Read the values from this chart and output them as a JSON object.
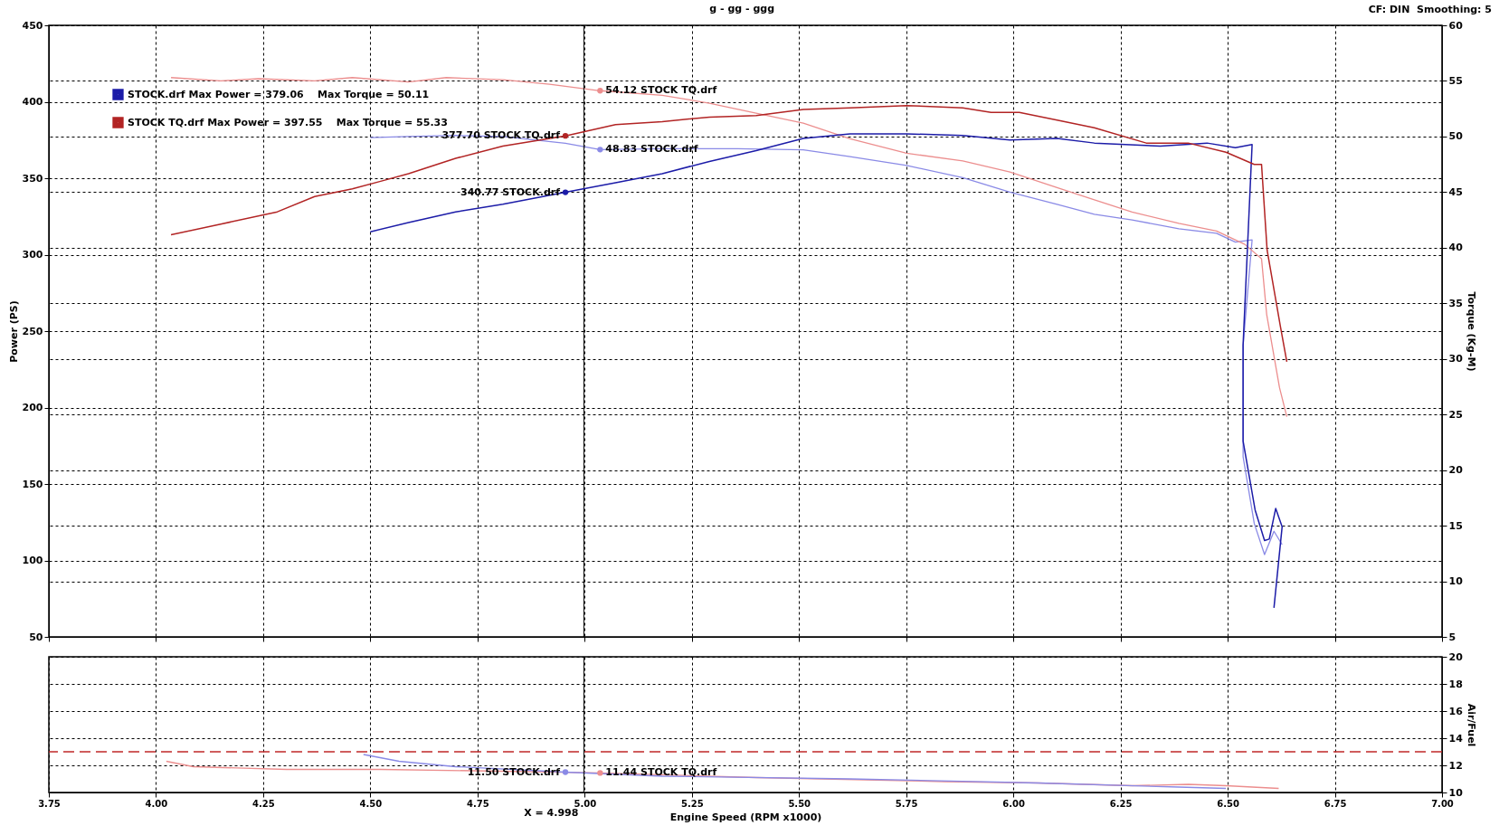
{
  "chart_data": [
    {
      "type": "line",
      "subtitle": "g - gg - ggg",
      "ylabel": "Power (PS)",
      "y2label": "Torque (Kg-M)",
      "annotations": [
        "CF: DIN  Smoothing: 5"
      ],
      "xlim": [
        3.75,
        7
      ],
      "xticks": [
        {
          "value": 3.75,
          "label": null
        },
        {
          "value": 4,
          "label": null
        },
        {
          "value": 4.25,
          "label": null
        },
        {
          "value": 4.5,
          "label": null
        },
        {
          "value": 4.75,
          "label": null
        },
        {
          "value": 5,
          "label": null
        },
        {
          "value": 5.25,
          "label": null
        },
        {
          "value": 5.5,
          "label": null
        },
        {
          "value": 5.75,
          "label": null
        },
        {
          "value": 6,
          "label": null
        },
        {
          "value": 6.25,
          "label": null
        },
        {
          "value": 6.5,
          "label": null
        },
        {
          "value": 6.75,
          "label": null
        },
        {
          "value": 7,
          "label": null
        }
      ],
      "ylim": [
        50,
        450
      ],
      "yticks": [
        50,
        100,
        150,
        200,
        250,
        300,
        350,
        400,
        450
      ],
      "y2lim": [
        5,
        60
      ],
      "y2ticks": [
        5,
        10,
        15,
        20,
        25,
        30,
        35,
        40,
        45,
        50,
        55,
        60
      ],
      "tick_labels": "y",
      "grid": true,
      "legend": "top left",
      "ref_lines": [
        {
          "axis": "x",
          "value": 4.998,
          "color": "#000000"
        }
      ],
      "series": [
        {
          "name": "STOCK.drf Max Power = 379.06    Max Torque = 50.11",
          "color": "#1c1ca8",
          "x": [
            4.5,
            4.589,
            4.699,
            4.809,
            4.955,
            5.072,
            5.181,
            5.291,
            5.4,
            5.51,
            5.619,
            5.751,
            5.882,
            5.992,
            6.102,
            6.189,
            6.343,
            6.452,
            6.518,
            6.557,
            6.536,
            6.536,
            6.564,
            6.586,
            6.597,
            6.612,
            6.627,
            6.608
          ],
          "values": [
            315,
            321,
            328,
            333,
            340.77,
            347,
            353,
            361,
            368,
            376,
            379,
            379,
            378,
            375,
            376,
            373,
            371,
            373,
            370,
            372,
            241,
            178,
            133,
            113,
            114,
            134,
            122,
            69
          ],
          "value_labels": [
            null,
            null,
            null,
            null,
            "340.77 STOCK.drf",
            null,
            null,
            null,
            null,
            null,
            null,
            null,
            null,
            null,
            null,
            null,
            null,
            null,
            null,
            null,
            null,
            null,
            null,
            null,
            null,
            null,
            null,
            null
          ]
        },
        {
          "name": "STOCK TQ.drf Max Power = 397.55    Max Torque = 55.33",
          "color": "#b22424",
          "x": [
            4.035,
            4.151,
            4.283,
            4.37,
            4.458,
            4.524,
            4.589,
            4.699,
            4.809,
            4.955,
            5.072,
            5.181,
            5.291,
            5.4,
            5.51,
            5.619,
            5.751,
            5.882,
            5.948,
            6.014,
            6.102,
            6.189,
            6.31,
            6.408,
            6.496,
            6.562,
            6.579,
            6.592,
            6.623,
            6.638
          ],
          "values": [
            313,
            320,
            328,
            338,
            343,
            348,
            353,
            363,
            371,
            377.7,
            385,
            387,
            390,
            391,
            395,
            396,
            397.5,
            396,
            393,
            393,
            388,
            383,
            373,
            373,
            367,
            359,
            359,
            303,
            253,
            230
          ],
          "value_labels": [
            null,
            null,
            null,
            null,
            null,
            null,
            null,
            null,
            null,
            "377.70 STOCK TQ.drf",
            null,
            null,
            null,
            null,
            null,
            null,
            null,
            null,
            null,
            null,
            null,
            null,
            null,
            null,
            null,
            null,
            null,
            null,
            null,
            null
          ]
        },
        {
          "color": "#8a8ae6",
          "axis": "y2",
          "x": [
            4.5,
            4.589,
            4.699,
            4.809,
            4.955,
            5.036,
            5.181,
            5.356,
            5.51,
            5.619,
            5.751,
            5.882,
            5.992,
            6.102,
            6.189,
            6.277,
            6.386,
            6.474,
            6.518,
            6.557,
            6.536,
            6.536,
            6.562,
            6.586,
            6.608,
            6.627
          ],
          "values": [
            49.9,
            50,
            50.1,
            50,
            49.4,
            48.83,
            48.9,
            48.9,
            48.8,
            48.2,
            47.4,
            46.3,
            45,
            43.9,
            43,
            42.5,
            41.7,
            41.3,
            40.5,
            40.7,
            31.2,
            21.2,
            15.2,
            12.4,
            14.5,
            13.3
          ],
          "value_labels": [
            null,
            null,
            null,
            null,
            null,
            "48.83 STOCK.drf",
            null,
            null,
            null,
            null,
            null,
            null,
            null,
            null,
            null,
            null,
            null,
            null,
            null,
            null,
            null,
            null,
            null,
            null,
            null,
            null
          ]
        },
        {
          "color": "#ec8e8e",
          "axis": "y2",
          "x": [
            4.035,
            4.151,
            4.239,
            4.37,
            4.458,
            4.589,
            4.677,
            4.809,
            4.918,
            5.036,
            5.181,
            5.291,
            5.4,
            5.51,
            5.619,
            5.751,
            5.882,
            5.992,
            6.102,
            6.189,
            6.277,
            6.386,
            6.474,
            6.54,
            6.579,
            6.591,
            6.621,
            6.638
          ],
          "values": [
            55.3,
            55,
            55.2,
            55,
            55.3,
            54.9,
            55.3,
            55.1,
            54.7,
            54.12,
            53.7,
            53,
            52.1,
            51.2,
            49.8,
            48.5,
            47.8,
            46.8,
            45.4,
            44.3,
            43.2,
            42.2,
            41.5,
            40.3,
            39,
            34,
            27.4,
            24.8
          ],
          "value_labels": [
            null,
            null,
            null,
            null,
            null,
            null,
            null,
            null,
            null,
            "54.12 STOCK TQ.drf",
            null,
            null,
            null,
            null,
            null,
            null,
            null,
            null,
            null,
            null,
            null,
            null,
            null,
            null,
            null,
            null,
            null,
            null
          ]
        }
      ]
    },
    {
      "type": "line",
      "xlabel": "Engine Speed (RPM x1000)",
      "y2label": "Air/Fuel",
      "xlim": [
        3.75,
        7
      ],
      "xticks": [
        {
          "value": 3.75,
          "label": "3.75"
        },
        {
          "value": 4,
          "label": "4.00"
        },
        {
          "value": 4.25,
          "label": "4.25"
        },
        {
          "value": 4.5,
          "label": "4.50"
        },
        {
          "value": 4.75,
          "label": "4.75"
        },
        {
          "value": 5,
          "label": "5.00"
        },
        {
          "value": 5.25,
          "label": "5.25"
        },
        {
          "value": 5.5,
          "label": "5.50"
        },
        {
          "value": 5.75,
          "label": "5.75"
        },
        {
          "value": 6,
          "label": "6.00"
        },
        {
          "value": 6.25,
          "label": "6.25"
        },
        {
          "value": 6.5,
          "label": "6.50"
        },
        {
          "value": 6.75,
          "label": "6.75"
        },
        {
          "value": 7,
          "label": "7.00"
        }
      ],
      "y2lim": [
        10,
        20
      ],
      "y2ticks": [
        10,
        12,
        14,
        16,
        18,
        20
      ],
      "grid": true,
      "ref_lines": [
        {
          "axis": "x",
          "value": 4.998,
          "label": "X = 4.998",
          "color": "#000000"
        },
        {
          "axis": "y2",
          "value": 13,
          "color": "#c02828",
          "line_style": "dashed"
        }
      ],
      "series": [
        {
          "color": "#ec8e8e",
          "axis": "y2",
          "x": [
            4.024,
            4.087,
            4.304,
            4.524,
            4.743,
            5.036,
            5.4,
            5.839,
            6.058,
            6.277,
            6.408,
            6.496,
            6.619
          ],
          "values": [
            12.3,
            11.9,
            11.7,
            11.7,
            11.6,
            11.44,
            11.1,
            10.8,
            10.7,
            10.5,
            10.6,
            10.5,
            10.3
          ],
          "value_labels": [
            null,
            null,
            null,
            null,
            null,
            "11.44 STOCK TQ.drf",
            null,
            null,
            null,
            null,
            null,
            null,
            null
          ]
        },
        {
          "color": "#8a8ae6",
          "axis": "y2",
          "x": [
            4.484,
            4.567,
            4.699,
            4.955,
            5.181,
            5.619,
            6.058,
            6.386,
            6.496
          ],
          "values": [
            12.8,
            12.3,
            11.9,
            11.5,
            11.2,
            11,
            10.7,
            10.4,
            10.3
          ],
          "value_labels": [
            null,
            null,
            null,
            "11.50 STOCK.drf",
            null,
            null,
            null,
            null,
            null
          ]
        }
      ]
    }
  ]
}
